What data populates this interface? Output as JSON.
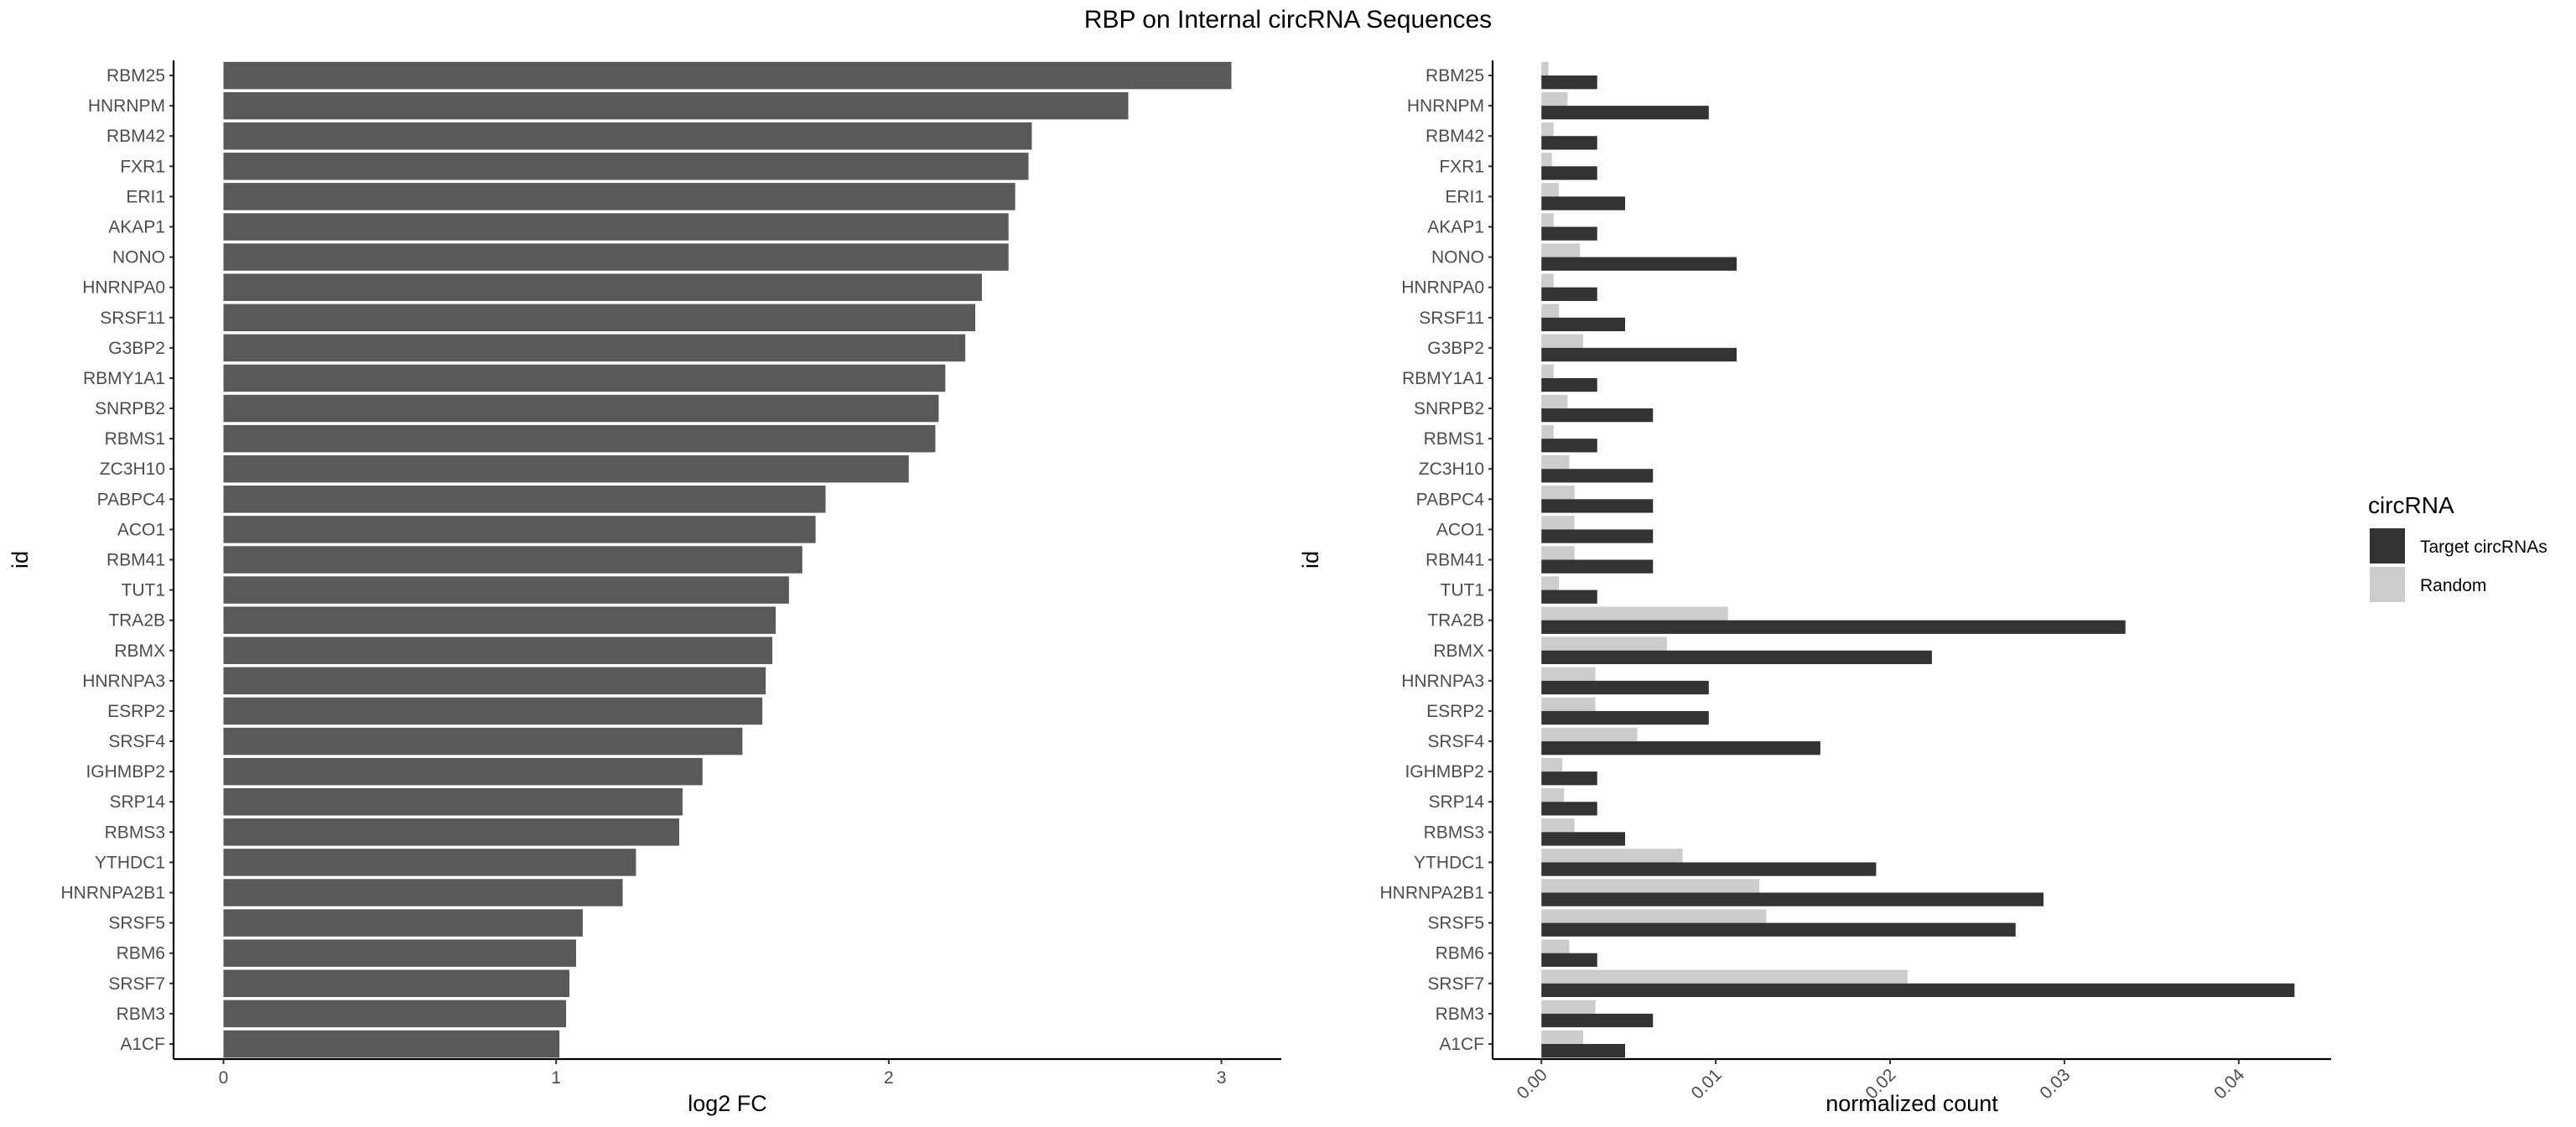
{
  "title": "RBP on Internal circRNA Sequences",
  "chart_data": [
    {
      "type": "bar",
      "orientation": "horizontal",
      "xlabel": "log2 FC",
      "ylabel": "id",
      "xlim": [
        -0.15,
        3.18
      ],
      "xticks": [
        0,
        1,
        2,
        3
      ],
      "tick_labels": [
        "0",
        "1",
        "2",
        "3"
      ],
      "grid": false,
      "categories": [
        "RBM25",
        "HNRNPM",
        "RBM42",
        "FXR1",
        "ERI1",
        "AKAP1",
        "NONO",
        "HNRNPA0",
        "SRSF11",
        "G3BP2",
        "RBMY1A1",
        "SNRPB2",
        "RBMS1",
        "ZC3H10",
        "PABPC4",
        "ACO1",
        "RBM41",
        "TUT1",
        "TRA2B",
        "RBMX",
        "HNRNPA3",
        "ESRP2",
        "SRSF4",
        "IGHMBP2",
        "SRP14",
        "RBMS3",
        "YTHDC1",
        "HNRNPA2B1",
        "SRSF5",
        "RBM6",
        "SRSF7",
        "RBM3",
        "A1CF"
      ],
      "values": [
        3.03,
        2.72,
        2.43,
        2.42,
        2.38,
        2.36,
        2.36,
        2.28,
        2.26,
        2.23,
        2.17,
        2.15,
        2.14,
        2.06,
        1.81,
        1.78,
        1.74,
        1.7,
        1.66,
        1.65,
        1.63,
        1.62,
        1.56,
        1.44,
        1.38,
        1.37,
        1.24,
        1.2,
        1.08,
        1.06,
        1.04,
        1.03,
        1.01
      ],
      "color": "#595959"
    },
    {
      "type": "bar",
      "orientation": "horizontal",
      "position": "dodge",
      "xlabel": "normalized count",
      "ylabel": "id",
      "xlim": [
        -0.0028,
        0.0453
      ],
      "xticks": [
        0,
        0.01,
        0.02,
        0.03,
        0.04
      ],
      "tick_labels": [
        "0.00",
        "0.01",
        "0.02",
        "0.03",
        "0.04"
      ],
      "tick_rotation": -45,
      "grid": false,
      "legend": {
        "title": "circRNA",
        "position": "right"
      },
      "categories": [
        "RBM25",
        "HNRNPM",
        "RBM42",
        "FXR1",
        "ERI1",
        "AKAP1",
        "NONO",
        "HNRNPA0",
        "SRSF11",
        "G3BP2",
        "RBMY1A1",
        "SNRPB2",
        "RBMS1",
        "ZC3H10",
        "PABPC4",
        "ACO1",
        "RBM41",
        "TUT1",
        "TRA2B",
        "RBMX",
        "HNRNPA3",
        "ESRP2",
        "SRSF4",
        "IGHMBP2",
        "SRP14",
        "RBMS3",
        "YTHDC1",
        "HNRNPA2B1",
        "SRSF5",
        "RBM6",
        "SRSF7",
        "RBM3",
        "A1CF"
      ],
      "series": [
        {
          "name": "Target circRNAs",
          "color": "#333333",
          "values": [
            0.0032,
            0.0096,
            0.0032,
            0.0032,
            0.0048,
            0.0032,
            0.0112,
            0.0032,
            0.0048,
            0.0112,
            0.0032,
            0.0064,
            0.0032,
            0.0064,
            0.0064,
            0.0064,
            0.0064,
            0.0032,
            0.0335,
            0.0224,
            0.0096,
            0.0096,
            0.016,
            0.0032,
            0.0032,
            0.0048,
            0.0192,
            0.0288,
            0.0272,
            0.0032,
            0.0432,
            0.0064,
            0.0048
          ]
        },
        {
          "name": "Random",
          "color": "#cccccc",
          "values": [
            0.0004,
            0.0015,
            0.0007,
            0.0006,
            0.001,
            0.0007,
            0.0022,
            0.0007,
            0.001,
            0.0024,
            0.0007,
            0.0015,
            0.0007,
            0.0016,
            0.0019,
            0.0019,
            0.0019,
            0.001,
            0.0107,
            0.0072,
            0.0031,
            0.0031,
            0.0055,
            0.0012,
            0.0013,
            0.0019,
            0.0081,
            0.0125,
            0.0129,
            0.0016,
            0.021,
            0.0031,
            0.0024
          ]
        }
      ]
    }
  ]
}
